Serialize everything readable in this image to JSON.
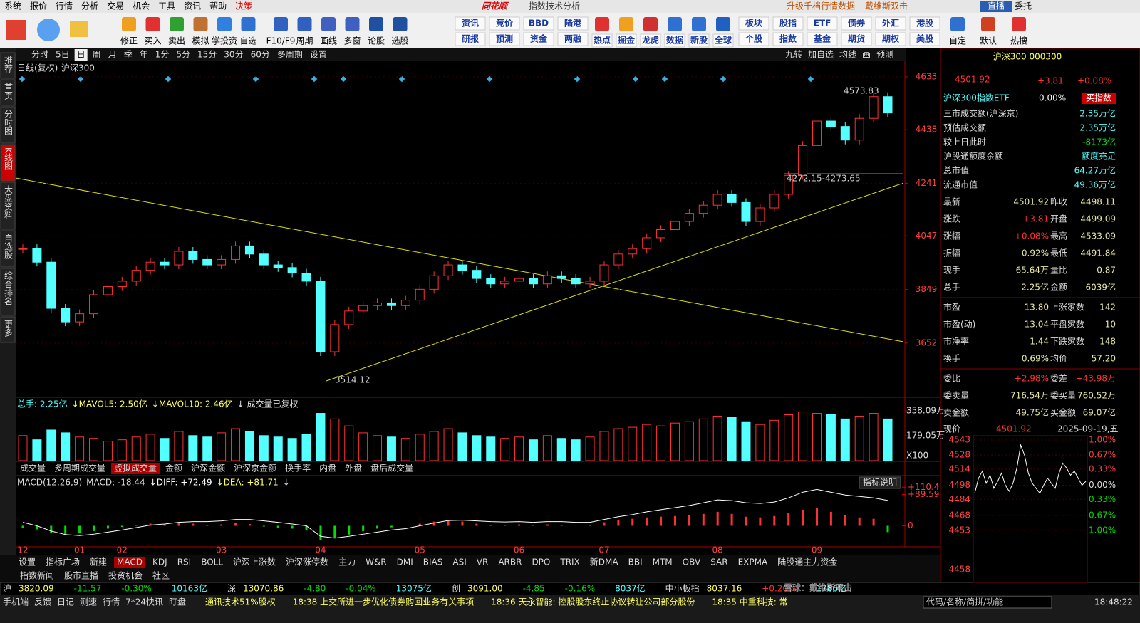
{
  "menu": {
    "items": [
      "系统",
      "报价",
      "行情",
      "分析",
      "交易",
      "机会",
      "工具",
      "资讯",
      "帮助",
      "决策"
    ],
    "app_title": "同花顺",
    "window_title": "指数技术分析",
    "links": [
      "升级千档行情数据",
      "戴维斯双击"
    ],
    "live": "直播",
    "trade": "委托"
  },
  "toolbar": {
    "buttons": [
      "修正",
      "买入",
      "卖出",
      "模拟",
      "学投资",
      "自选",
      "F10/F9",
      "周期",
      "画线",
      "多窗",
      "论股",
      "选股"
    ],
    "grid_a": [
      "资讯",
      "竞价",
      "BBD",
      "陆港",
      "研报",
      "预测",
      "资金",
      "两融"
    ],
    "grid_b": [
      "热点",
      "掘金",
      "龙虎",
      "数据",
      "新股",
      "全球"
    ],
    "grid_c": [
      "板块",
      "股指",
      "ETF",
      "债券",
      "外汇",
      "港股",
      "个股",
      "指数",
      "基金",
      "期货",
      "期权",
      "美股"
    ],
    "grid_d": [
      "自定",
      "默认",
      "热搜"
    ]
  },
  "side_tabs": [
    "推荐",
    "首页",
    "分时图",
    "K线图",
    "大盘资料",
    "自选股",
    "综合排名",
    "更多"
  ],
  "period_bar": {
    "items": [
      "分时",
      "5日",
      "日",
      "周",
      "月",
      "季",
      "年",
      "1分",
      "5分",
      "15分",
      "30分",
      "60分",
      "多周期",
      "设置"
    ],
    "active": 2,
    "tools": [
      "九转",
      "加自选",
      "均线",
      "画",
      "预测"
    ]
  },
  "chart_data": {
    "type": "candlestick",
    "title": "日线(复权)",
    "subtitle": "沪深300",
    "categories": [
      "12",
      null,
      null,
      null,
      "01",
      null,
      null,
      "02",
      null,
      null,
      null,
      null,
      null,
      null,
      "03",
      null,
      null,
      null,
      null,
      null,
      null,
      "04",
      null,
      null,
      null,
      null,
      null,
      null,
      "05",
      null,
      null,
      null,
      null,
      null,
      null,
      "06",
      null,
      null,
      null,
      null,
      null,
      "07",
      null,
      null,
      null,
      null,
      null,
      null,
      null,
      "08",
      null,
      null,
      null,
      null,
      null,
      null,
      "09",
      null,
      null,
      null,
      null,
      null
    ],
    "close": [
      4000,
      3950,
      3780,
      3730,
      3760,
      3830,
      3860,
      3880,
      3920,
      3950,
      3940,
      3990,
      3960,
      3940,
      3960,
      4010,
      3980,
      3940,
      3930,
      3910,
      3880,
      3620,
      3720,
      3770,
      3790,
      3800,
      3790,
      3810,
      3850,
      3900,
      3940,
      3920,
      3890,
      3870,
      3880,
      3890,
      3870,
      3900,
      3890,
      3870,
      3880,
      3940,
      3980,
      4000,
      4040,
      4070,
      4100,
      4130,
      4160,
      4200,
      4170,
      4100,
      4150,
      4200,
      4270,
      4380,
      4470,
      4450,
      4400,
      4480,
      4560,
      4500
    ],
    "up_color": "#ff3232",
    "down_color": "#54ffff",
    "ylim": [
      3460,
      4680
    ],
    "yticks": [
      4633,
      4438,
      4241,
      4047,
      3849,
      3652
    ],
    "annotations": [
      "4573.83",
      "4272.15-4273.65",
      "3514.12"
    ]
  },
  "volume": {
    "header": [
      "总手: 2.25亿",
      "↓MAVOL5: 2.50亿",
      "↓MAVOL10: 2.46亿",
      "↓ 成交量已复权"
    ],
    "unit": "X100",
    "values": [
      180,
      150,
      220,
      200,
      170,
      160,
      140,
      150,
      170,
      190,
      160,
      210,
      180,
      170,
      200,
      230,
      210,
      180,
      170,
      160,
      190,
      340,
      300,
      250,
      200,
      180,
      170,
      160,
      190,
      210,
      230,
      200,
      180,
      170,
      160,
      170,
      150,
      180,
      160,
      150,
      170,
      210,
      230,
      240,
      260,
      250,
      270,
      280,
      300,
      320,
      310,
      280,
      260,
      290,
      330,
      350,
      340,
      330,
      300,
      320,
      340,
      300
    ],
    "ylim": [
      0,
      399
    ],
    "yticks": [
      {
        "value": 358.09,
        "label": "358.09万"
      },
      {
        "value": 179.05,
        "label": "179.05万"
      }
    ],
    "tabs": [
      "成交量",
      "多周期成交量",
      "虚拟成交量",
      "金额",
      "沪深金额",
      "沪深京金额",
      "换手率",
      "内盘",
      "外盘",
      "盘后成交量"
    ],
    "active_tab": 2
  },
  "macd": {
    "header": [
      "MACD(12,26,9)",
      "MACD: -18.44",
      "↓DIFF: +72.49",
      "↓DEA: +81.71",
      "↓"
    ],
    "help": "指标说明",
    "hist": [
      -5,
      -10,
      -20,
      -25,
      -20,
      -15,
      -8,
      -3,
      2,
      6,
      4,
      8,
      6,
      3,
      4,
      8,
      5,
      -2,
      -5,
      -8,
      -12,
      -40,
      -35,
      -25,
      -15,
      -8,
      -4,
      0,
      6,
      12,
      16,
      12,
      6,
      2,
      3,
      4,
      1,
      4,
      3,
      0,
      2,
      10,
      16,
      20,
      24,
      26,
      28,
      30,
      34,
      40,
      34,
      26,
      24,
      28,
      36,
      46,
      50,
      40,
      30,
      24,
      20,
      -18
    ],
    "diff": [
      10,
      0,
      -15,
      -25,
      -28,
      -24,
      -18,
      -12,
      -5,
      2,
      5,
      10,
      12,
      12,
      14,
      18,
      18,
      14,
      10,
      5,
      0,
      -30,
      -35,
      -30,
      -24,
      -18,
      -12,
      -8,
      0,
      8,
      15,
      16,
      14,
      12,
      11,
      12,
      10,
      12,
      12,
      10,
      10,
      18,
      26,
      32,
      40,
      46,
      52,
      58,
      66,
      74,
      72,
      66,
      64,
      68,
      80,
      96,
      104,
      96,
      88,
      84,
      80,
      72.49
    ],
    "ylim": [
      -60,
      115
    ],
    "yticks": [
      {
        "value": 110.4,
        "label": "+110.4"
      },
      {
        "value": 89.59,
        "label": "+89.59"
      },
      0
    ]
  },
  "indicator_tabs": [
    "设置",
    "指标广场",
    "新建",
    "MACD",
    "KDJ",
    "RSI",
    "BOLL",
    "沪深上涨数",
    "沪深涨停数",
    "主力",
    "W&R",
    "DMI",
    "BIAS",
    "ASI",
    "VR",
    "ARBR",
    "DPO",
    "TRIX",
    "新DMA",
    "BBI",
    "MTM",
    "OBV",
    "SAR",
    "EXPMA",
    "陆股通主力资金"
  ],
  "bottom_tabs": [
    "指数新闻",
    "股市直播",
    "投资机会",
    "社区"
  ],
  "ticker": [
    [
      "沪",
      "3820.09",
      "-11.57",
      "-0.30%",
      "10163亿"
    ],
    [
      "深",
      "13070.86",
      "-4.80",
      "-0.04%",
      "13075亿"
    ],
    [
      "创",
      "3091.00",
      "-4.85",
      "-0.16%",
      "8037亿"
    ],
    [
      "中小板指",
      "8037.16",
      "+0.20%",
      "1786亿"
    ]
  ],
  "status": {
    "items": [
      "手机端",
      "反馈",
      "日记",
      "测速",
      "行情",
      "7*24快讯",
      "盯盘"
    ],
    "news": [
      "通讯技术51%股权",
      "18:38 上交所进一步优化债券购回业务有关事项",
      "18:36 天永智能: 控股股东终止协议转让公司部分股份",
      "18:35 中重科技: 常"
    ],
    "search": "代码/名称/简拼/功能",
    "time": "18:48:22"
  },
  "quote": {
    "name": "沪深300 000300",
    "price": "4501.92",
    "change": "+3.81",
    "pct": "+0.08%",
    "etf": "沪深300指数ETF",
    "etf_pct": "0.00%",
    "buy": "买指数",
    "rows": [
      [
        "三市成交额(沪深京)",
        "2.35万亿"
      ],
      [
        "预估成交额",
        "2.35万亿"
      ],
      [
        "较上日此时",
        "-8173亿"
      ],
      [
        "沪股通额度余额",
        "额度充足"
      ],
      [
        "总市值",
        "64.27万亿"
      ],
      [
        "流通市值",
        "49.36万亿"
      ]
    ],
    "grid": [
      [
        "最新",
        "4501.92",
        "昨收",
        "4498.11"
      ],
      [
        "涨跌",
        "+3.81",
        "开盘",
        "4499.09"
      ],
      [
        "涨幅",
        "+0.08%",
        "最高",
        "4533.09"
      ],
      [
        "振幅",
        "0.92%",
        "最低",
        "4491.84"
      ],
      [
        "现手",
        "65.64万",
        "量比",
        "0.87"
      ],
      [
        "总手",
        "2.25亿",
        "金额",
        "6039亿"
      ],
      [
        "市盈",
        "13.80",
        "上涨家数",
        "142"
      ],
      [
        "市盈(动)",
        "13.04",
        "平盘家数",
        "10"
      ],
      [
        "市净率",
        "1.44",
        "下跌家数",
        "148"
      ],
      [
        "换手",
        "0.69%",
        "均价",
        "57.20"
      ],
      [
        "委比",
        "+2.98%",
        "委差",
        "+43.98万"
      ],
      [
        "委卖量",
        "716.54万",
        "委买量",
        "760.52万"
      ],
      [
        "卖金额",
        "49.75亿",
        "买金额",
        "69.07亿"
      ]
    ]
  },
  "intraday": {
    "label": "现价",
    "price": "4501.92",
    "date": "2025-09-19,五",
    "values": [
      4490,
      4505,
      4512,
      4500,
      4508,
      4495,
      4502,
      4510,
      4498,
      4492,
      4500,
      4515,
      4538,
      4528,
      4510,
      4500,
      4495,
      4490,
      4498,
      4505,
      4500,
      4495,
      4510,
      4520,
      4515,
      4508,
      4512,
      4505,
      4498,
      4501.92
    ],
    "ylim": [
      4453,
      4543
    ],
    "yticks": [
      4543,
      4528,
      4514,
      4498,
      4484,
      4468,
      4453
    ],
    "pct_labels": [
      "1.00%",
      "0.67%",
      "0.33%",
      "0.00%",
      "0.33%",
      "0.67%",
      "1.00%"
    ],
    "vol_label": "4458"
  },
  "watermark": "雪球：戴维斯双击"
}
